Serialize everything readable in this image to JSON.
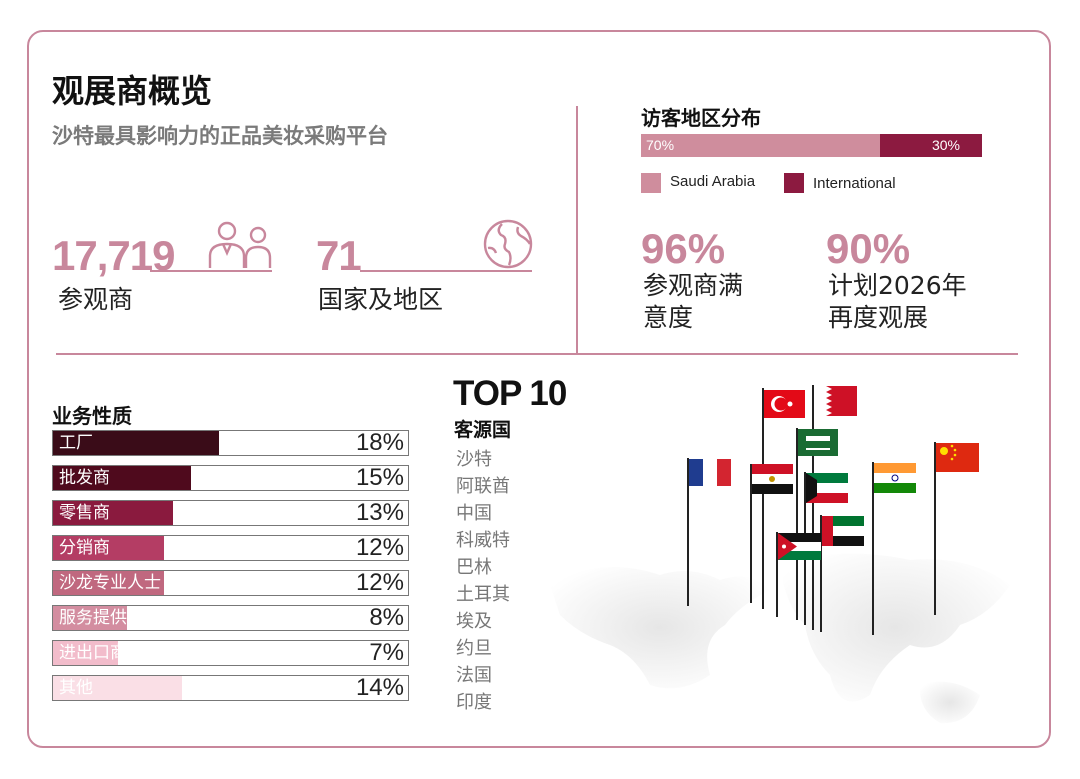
{
  "header": {
    "title": "观展商概览",
    "subtitle": "沙特最具影响力的正品美妆采购平台"
  },
  "stats": {
    "visitors": {
      "value": "17,719",
      "label": "参观商"
    },
    "countries": {
      "value": "71",
      "label": "国家及地区"
    }
  },
  "distribution": {
    "title": "访客地区分布",
    "saudi_pct_label": "70%",
    "intl_pct_label": "30%",
    "saudi_share": 70,
    "intl_share": 30,
    "legend_saudi": "Saudi Arabia",
    "legend_intl": "International",
    "colors": {
      "saudi": "#cf8d9d",
      "intl": "#8c1a40"
    }
  },
  "satisfaction": {
    "value": "96%",
    "label_line1": "参观商满",
    "label_line2": "意度"
  },
  "return_plan": {
    "value": "90%",
    "label_line1": "计划2026年",
    "label_line2": "再度观展"
  },
  "chart_data": {
    "type": "bar",
    "title": "业务性质",
    "categories": [
      "工厂",
      "批发商",
      "零售商",
      "分销商",
      "沙龙专业人士",
      "服务提供商",
      "进出口商",
      "其他"
    ],
    "values": [
      18,
      15,
      13,
      12,
      12,
      8,
      7,
      14
    ],
    "value_labels": [
      "18%",
      "15%",
      "13%",
      "12%",
      "12%",
      "8%",
      "7%",
      "14%"
    ],
    "colors": [
      "#3a0c18",
      "#4f0a1d",
      "#8a1a3e",
      "#b43d64",
      "#c0687f",
      "#d38da0",
      "#f2bccb",
      "#fadfe6"
    ],
    "xlabel": "",
    "ylabel": "",
    "ylim": [
      0,
      18
    ]
  },
  "top10": {
    "title": "TOP 10",
    "subtitle": "客源国",
    "countries": [
      "沙特",
      "阿联酋",
      "中国",
      "科威特",
      "巴林",
      "土耳其",
      "埃及",
      "约旦",
      "法国",
      "印度"
    ]
  }
}
